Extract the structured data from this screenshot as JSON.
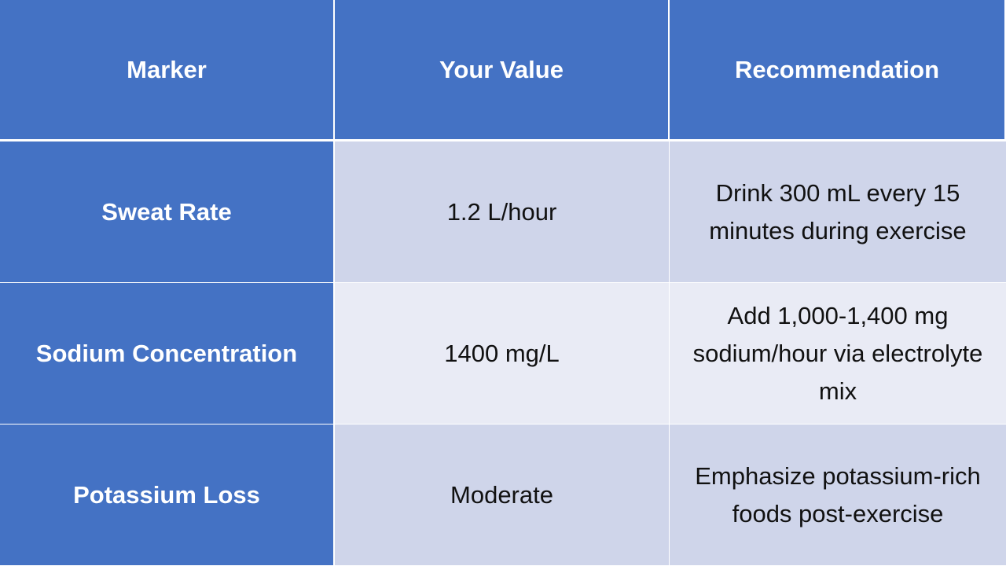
{
  "table": {
    "headers": [
      "Marker",
      "Your Value",
      "Recommendation"
    ],
    "rows": [
      {
        "marker": "Sweat Rate",
        "value": "1.2 L/hour",
        "recommendation": "Drink 300 mL every 15 minutes during exercise"
      },
      {
        "marker": "Sodium Concentration",
        "value": "1400 mg/L",
        "recommendation": "Add 1,000-1,400 mg sodium/hour via electrolyte mix"
      },
      {
        "marker": "Potassium Loss",
        "value": "Moderate",
        "recommendation": "Emphasize potassium-rich foods post-exercise"
      }
    ]
  },
  "colors": {
    "header_bg": "#4472c4",
    "row_odd_bg": "#cfd5ea",
    "row_even_bg": "#e9ebf5",
    "header_text": "#ffffff",
    "body_text": "#111111"
  }
}
